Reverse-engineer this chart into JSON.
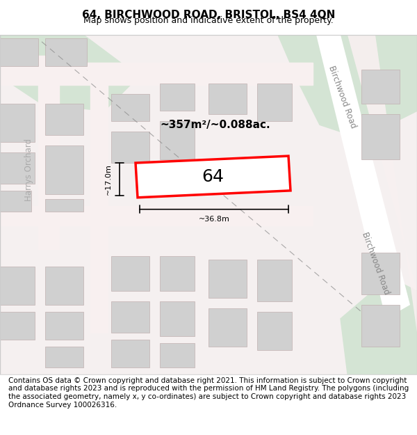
{
  "title_line1": "64, BIRCHWOOD ROAD, BRISTOL, BS4 4QN",
  "title_line2": "Map shows position and indicative extent of the property.",
  "footer_text": "Contains OS data © Crown copyright and database right 2021. This information is subject to Crown copyright and database rights 2023 and is reproduced with the permission of HM Land Registry. The polygons (including the associated geometry, namely x, y co-ordinates) are subject to Crown copyright and database rights 2023 Ordnance Survey 100026316.",
  "map_bg": "#f5f0f0",
  "road_color": "#e8c8c8",
  "building_color": "#d0d0d0",
  "building_edge": "#c0b0b0",
  "green_area": "#d4e4d4",
  "property_fill": "#ffffff",
  "property_edge": "#ff0000",
  "road_label1": "Birchwood Road",
  "road_label2": "Birchwood Road",
  "street_label": "Harrys Orchard",
  "area_label": "~357m²/~0.088ac.",
  "width_label": "~36.8m",
  "height_label": "~17.0m",
  "property_number": "64",
  "title_fontsize": 11,
  "subtitle_fontsize": 9,
  "footer_fontsize": 7.5
}
